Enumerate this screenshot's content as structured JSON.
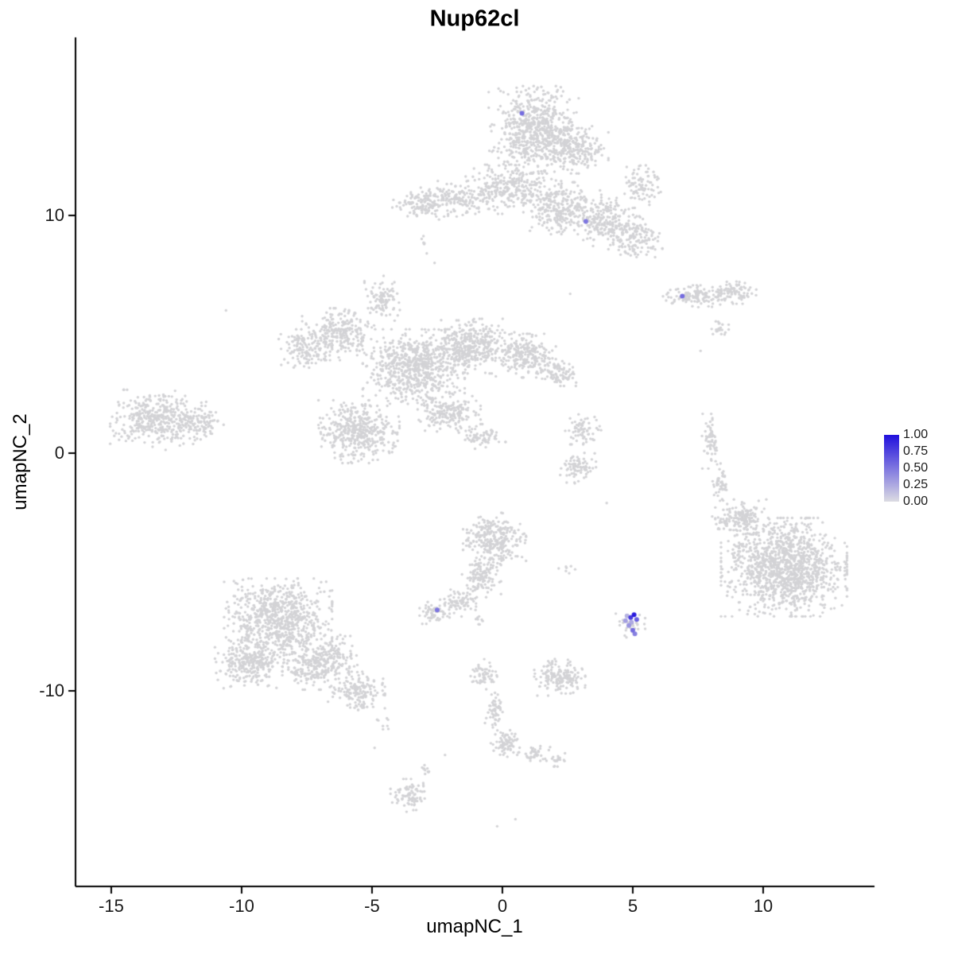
{
  "chart_data": {
    "type": "scatter",
    "title": "Nup62cl",
    "xlabel": "umapNC_1",
    "ylabel": "umapNC_2",
    "xlim": [
      -16.37,
      14.27
    ],
    "ylim": [
      -18.23,
      17.49
    ],
    "x_ticks": [
      -15,
      -10,
      -5,
      0,
      5,
      10
    ],
    "y_ticks": [
      10,
      0,
      -10
    ],
    "grid": false,
    "base_point_color": "#d3d3d6",
    "legend": {
      "position": "right",
      "ticks": [
        "1.00",
        "0.75",
        "0.50",
        "0.25",
        "0.00"
      ],
      "color_low": "#dcdce2",
      "color_high": "#2010dd"
    },
    "clusters_format": "cx,cy,rx,ry,n (gaussian blob: center, ~radii in data units, point count)",
    "clusters": [
      [
        1.2,
        13.6,
        1.5,
        1.6,
        650
      ],
      [
        2.8,
        12.8,
        1.1,
        0.9,
        220
      ],
      [
        0.3,
        11.1,
        1.7,
        0.9,
        300
      ],
      [
        -1.9,
        10.7,
        1.4,
        0.65,
        180
      ],
      [
        -3.3,
        10.4,
        0.8,
        0.5,
        80
      ],
      [
        2.3,
        10.3,
        1.3,
        0.95,
        280
      ],
      [
        4.0,
        9.7,
        1.0,
        0.9,
        200
      ],
      [
        5.1,
        9.1,
        0.9,
        0.75,
        140
      ],
      [
        5.3,
        11.2,
        0.7,
        0.9,
        90
      ],
      [
        7.3,
        6.6,
        1.05,
        0.4,
        120
      ],
      [
        8.9,
        6.8,
        0.85,
        0.45,
        90
      ],
      [
        8.3,
        5.3,
        0.45,
        0.3,
        22
      ],
      [
        -6.3,
        5.0,
        1.2,
        0.95,
        260
      ],
      [
        -7.6,
        4.4,
        0.85,
        0.7,
        120
      ],
      [
        -4.6,
        6.5,
        0.6,
        0.85,
        100
      ],
      [
        -3.4,
        3.6,
        1.7,
        1.4,
        650
      ],
      [
        -1.2,
        4.5,
        1.5,
        1.0,
        400
      ],
      [
        0.9,
        4.1,
        1.0,
        0.8,
        220
      ],
      [
        2.2,
        3.4,
        0.6,
        0.5,
        80
      ],
      [
        -5.5,
        0.9,
        1.35,
        1.15,
        420
      ],
      [
        -2.1,
        1.7,
        1.1,
        0.75,
        190
      ],
      [
        -0.8,
        0.7,
        0.8,
        0.45,
        70
      ],
      [
        -13.2,
        1.4,
        1.6,
        1.1,
        400
      ],
      [
        -11.5,
        1.3,
        0.8,
        0.6,
        90
      ],
      [
        3.1,
        1.0,
        0.6,
        0.55,
        70
      ],
      [
        2.9,
        -0.6,
        0.6,
        0.6,
        80
      ],
      [
        8.0,
        0.5,
        0.3,
        1.0,
        60
      ],
      [
        8.35,
        -1.3,
        0.28,
        0.75,
        45
      ],
      [
        8.6,
        -2.9,
        0.55,
        0.55,
        14
      ],
      [
        10.8,
        -4.8,
        2.1,
        1.8,
        1250
      ],
      [
        9.2,
        -2.7,
        0.9,
        0.65,
        150
      ],
      [
        -0.3,
        -3.6,
        1.05,
        0.95,
        280
      ],
      [
        -0.8,
        -5.2,
        0.65,
        0.75,
        120
      ],
      [
        -1.7,
        -6.3,
        0.6,
        0.5,
        80
      ],
      [
        -2.6,
        -6.7,
        0.5,
        0.42,
        55
      ],
      [
        -0.9,
        -7.1,
        0.25,
        0.2,
        8
      ],
      [
        -8.6,
        -7.0,
        1.8,
        1.5,
        750
      ],
      [
        -9.7,
        -8.8,
        1.15,
        0.95,
        280
      ],
      [
        -7.0,
        -8.8,
        1.25,
        1.0,
        320
      ],
      [
        -5.6,
        -10.0,
        0.95,
        0.7,
        160
      ],
      [
        4.9,
        -7.2,
        0.5,
        0.48,
        26
      ],
      [
        2.2,
        -9.4,
        0.85,
        0.7,
        170
      ],
      [
        -0.7,
        -9.3,
        0.45,
        0.55,
        60
      ],
      [
        -0.3,
        -10.8,
        0.32,
        0.75,
        55
      ],
      [
        0.1,
        -12.2,
        0.5,
        0.5,
        75
      ],
      [
        1.2,
        -12.6,
        0.55,
        0.3,
        40
      ],
      [
        2.1,
        -12.9,
        0.4,
        0.25,
        20
      ],
      [
        -3.6,
        -14.4,
        0.6,
        0.6,
        85
      ],
      [
        -3.0,
        -13.3,
        0.3,
        0.4,
        10
      ],
      [
        -4.6,
        -11.4,
        0.3,
        0.4,
        8
      ],
      [
        2.5,
        -4.9,
        0.3,
        0.22,
        7
      ],
      [
        -3.1,
        8.9,
        0.25,
        0.3,
        6
      ]
    ],
    "singles": [
      [
        -10.6,
        6.0
      ],
      [
        -2.9,
        8.4
      ],
      [
        -2.6,
        8.0
      ],
      [
        2.6,
        6.7
      ],
      [
        4.0,
        -2.1
      ],
      [
        -0.2,
        -15.7
      ],
      [
        0.5,
        -15.4
      ],
      [
        -2.2,
        -12.7
      ],
      [
        -4.9,
        -12.4
      ],
      [
        7.6,
        4.3
      ]
    ],
    "expressing_cells_format": "x,y,expression_value (0-1, mapped to lightgrey-blue gradient)",
    "expressing_cells": [
      [
        0.75,
        14.3,
        0.55
      ],
      [
        3.2,
        9.75,
        0.5
      ],
      [
        6.9,
        6.6,
        0.55
      ],
      [
        -2.5,
        -6.6,
        0.5
      ],
      [
        5.05,
        -6.8,
        0.95
      ],
      [
        4.92,
        -6.92,
        0.8
      ],
      [
        5.15,
        -7.0,
        0.6
      ],
      [
        4.72,
        -7.05,
        0.3
      ],
      [
        4.85,
        -7.25,
        0.35
      ],
      [
        5.0,
        -7.45,
        0.55
      ],
      [
        5.08,
        -7.6,
        0.45
      ],
      [
        4.78,
        -6.85,
        0.2
      ],
      [
        4.95,
        -7.12,
        0.25
      ]
    ]
  }
}
